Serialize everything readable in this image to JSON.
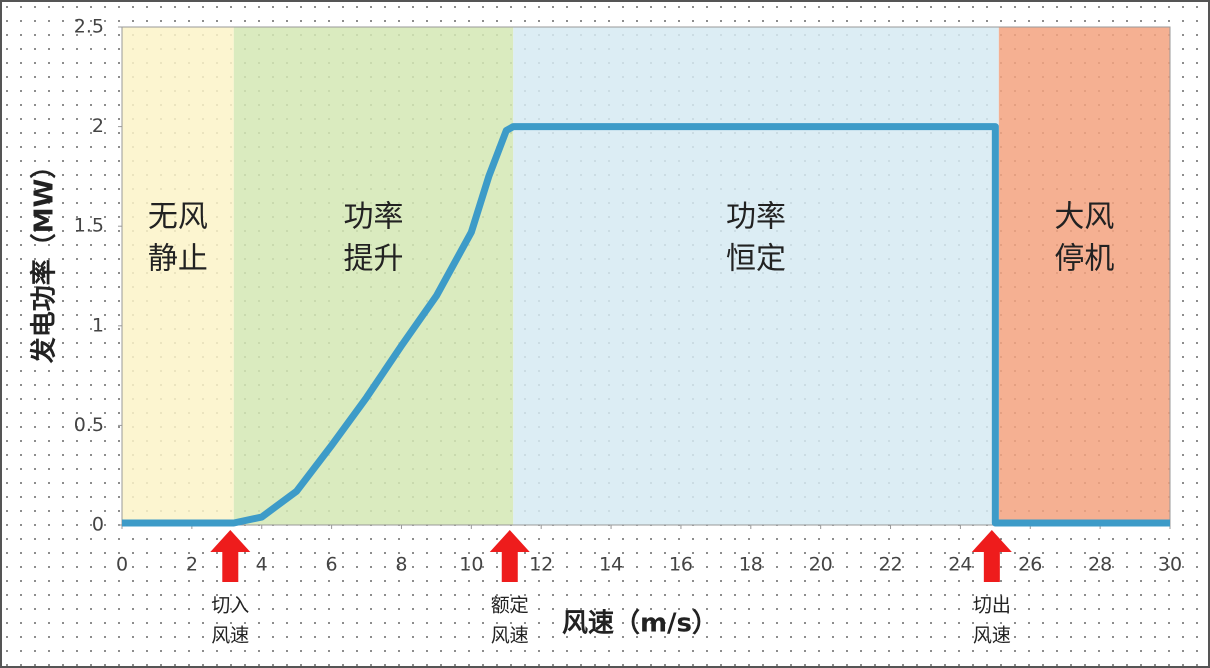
{
  "chart_data": {
    "type": "line",
    "xlabel": "风速（m/s）",
    "ylabel": "发电功率（MW）",
    "x": [
      0,
      3.2,
      4,
      5,
      6,
      7,
      8,
      9,
      10,
      10.5,
      11,
      11.2,
      25,
      25,
      30
    ],
    "series": [
      {
        "color": "#3d9bc8",
        "values": [
          0.01,
          0.01,
          0.04,
          0.17,
          0.4,
          0.64,
          0.9,
          1.15,
          1.47,
          1.75,
          1.98,
          2.0,
          2.0,
          0.01,
          0.01
        ]
      }
    ],
    "xlim": [
      0,
      30
    ],
    "xticks": [
      0,
      2,
      4,
      6,
      8,
      10,
      12,
      14,
      16,
      18,
      20,
      22,
      24,
      26,
      28,
      30
    ],
    "ylim": [
      0,
      2.5
    ],
    "yticks": [
      0,
      0.5,
      1,
      1.5,
      2,
      2.5
    ],
    "zones": [
      {
        "x0": 0,
        "x1": 3.2,
        "color": "#fbf3c8",
        "label": [
          "无风",
          "静止"
        ]
      },
      {
        "x0": 3.2,
        "x1": 11.2,
        "color": "#d3e8b4",
        "label": [
          "功率",
          "提升"
        ]
      },
      {
        "x0": 11.2,
        "x1": 25.1,
        "color": "#d6eaf2",
        "label": [
          "功率",
          "恒定"
        ]
      },
      {
        "x0": 25.1,
        "x1": 30,
        "color": "#f3a27f",
        "label": [
          "大风",
          "停机"
        ]
      }
    ],
    "markers": [
      {
        "x": 3.1,
        "color": "#ee1c1c",
        "label": [
          "切入",
          "风速"
        ]
      },
      {
        "x": 11.1,
        "color": "#ee1c1c",
        "label": [
          "额定",
          "风速"
        ]
      },
      {
        "x": 24.9,
        "color": "#ee1c1c",
        "label": [
          "切出",
          "风速"
        ]
      }
    ]
  }
}
